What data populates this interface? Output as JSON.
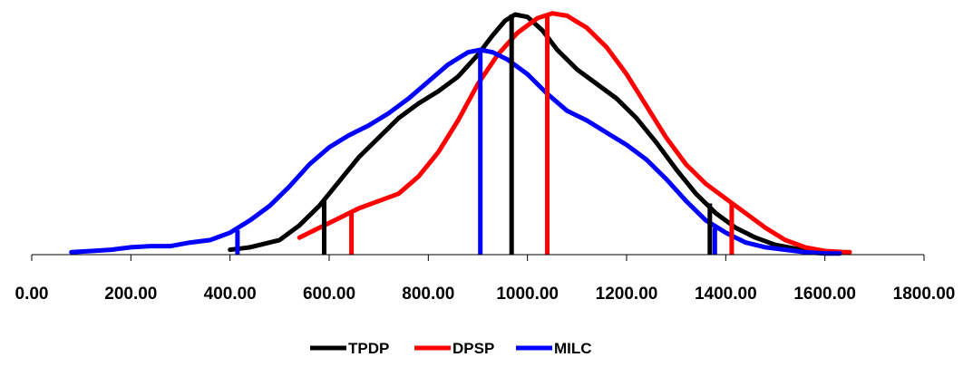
{
  "chart_data": {
    "type": "line",
    "title": "",
    "xlabel": "",
    "ylabel": "",
    "xlim": [
      0,
      1800
    ],
    "ylim": [
      0,
      1
    ],
    "x_tick_labels": [
      "0.00",
      "200.00",
      "400.00",
      "600.00",
      "800.00",
      "1000.00",
      "1200.00",
      "1400.00",
      "1600.00",
      "1800.00"
    ],
    "x_ticks": [
      0,
      200,
      400,
      600,
      800,
      1000,
      1200,
      1400,
      1600,
      1800
    ],
    "grid": false,
    "legend_position": "bottom",
    "series": [
      {
        "name": "TPDP",
        "color": "#000000",
        "x": [
          400,
          420,
          440,
          470,
          500,
          540,
          580,
          620,
          660,
          700,
          740,
          780,
          820,
          860,
          900,
          930,
          955,
          975,
          1000,
          1030,
          1060,
          1100,
          1140,
          1180,
          1220,
          1260,
          1300,
          1340,
          1380,
          1420,
          1460,
          1500,
          1540,
          1580,
          1620
        ],
        "y": [
          0.02,
          0.025,
          0.03,
          0.045,
          0.06,
          0.12,
          0.2,
          0.3,
          0.4,
          0.48,
          0.56,
          0.62,
          0.67,
          0.73,
          0.82,
          0.9,
          0.96,
          0.985,
          0.975,
          0.92,
          0.84,
          0.76,
          0.7,
          0.64,
          0.56,
          0.46,
          0.35,
          0.25,
          0.17,
          0.11,
          0.07,
          0.04,
          0.025,
          0.015,
          0.01
        ]
      },
      {
        "name": "DPSP",
        "color": "#ff0000",
        "x": [
          540,
          580,
          620,
          660,
          700,
          740,
          780,
          820,
          860,
          900,
          940,
          980,
          1020,
          1050,
          1080,
          1120,
          1160,
          1200,
          1240,
          1280,
          1320,
          1360,
          1400,
          1440,
          1480,
          1520,
          1560,
          1600,
          1640,
          1650
        ],
        "y": [
          0.07,
          0.11,
          0.15,
          0.19,
          0.22,
          0.25,
          0.32,
          0.42,
          0.55,
          0.7,
          0.82,
          0.91,
          0.97,
          0.99,
          0.98,
          0.93,
          0.85,
          0.74,
          0.61,
          0.48,
          0.37,
          0.29,
          0.23,
          0.17,
          0.11,
          0.06,
          0.03,
          0.015,
          0.01,
          0.01
        ]
      },
      {
        "name": "MILC",
        "color": "#0000ff",
        "x": [
          80,
          120,
          160,
          200,
          240,
          280,
          320,
          360,
          400,
          440,
          480,
          520,
          560,
          600,
          640,
          680,
          720,
          760,
          800,
          840,
          880,
          905,
          930,
          960,
          1000,
          1040,
          1080,
          1120,
          1160,
          1200,
          1240,
          1280,
          1320,
          1360,
          1400,
          1440,
          1480,
          1520,
          1560,
          1600,
          1630
        ],
        "y": [
          0.01,
          0.015,
          0.02,
          0.03,
          0.035,
          0.035,
          0.05,
          0.06,
          0.09,
          0.14,
          0.2,
          0.28,
          0.37,
          0.44,
          0.49,
          0.53,
          0.58,
          0.64,
          0.71,
          0.78,
          0.83,
          0.84,
          0.83,
          0.8,
          0.74,
          0.66,
          0.59,
          0.55,
          0.5,
          0.45,
          0.39,
          0.31,
          0.22,
          0.14,
          0.09,
          0.05,
          0.03,
          0.02,
          0.01,
          0.005,
          0.005
        ]
      }
    ],
    "markers": [
      {
        "series": "TPDP",
        "x": 590,
        "y": 0.22
      },
      {
        "series": "TPDP",
        "x": 968,
        "y": 0.985
      },
      {
        "series": "TPDP",
        "x": 1368,
        "y": 0.21
      },
      {
        "series": "DPSP",
        "x": 645,
        "y": 0.17
      },
      {
        "series": "DPSP",
        "x": 1040,
        "y": 0.99
      },
      {
        "series": "DPSP",
        "x": 1412,
        "y": 0.21
      },
      {
        "series": "MILC",
        "x": 415,
        "y": 0.1
      },
      {
        "series": "MILC",
        "x": 905,
        "y": 0.84
      },
      {
        "series": "MILC",
        "x": 1378,
        "y": 0.11
      }
    ]
  }
}
